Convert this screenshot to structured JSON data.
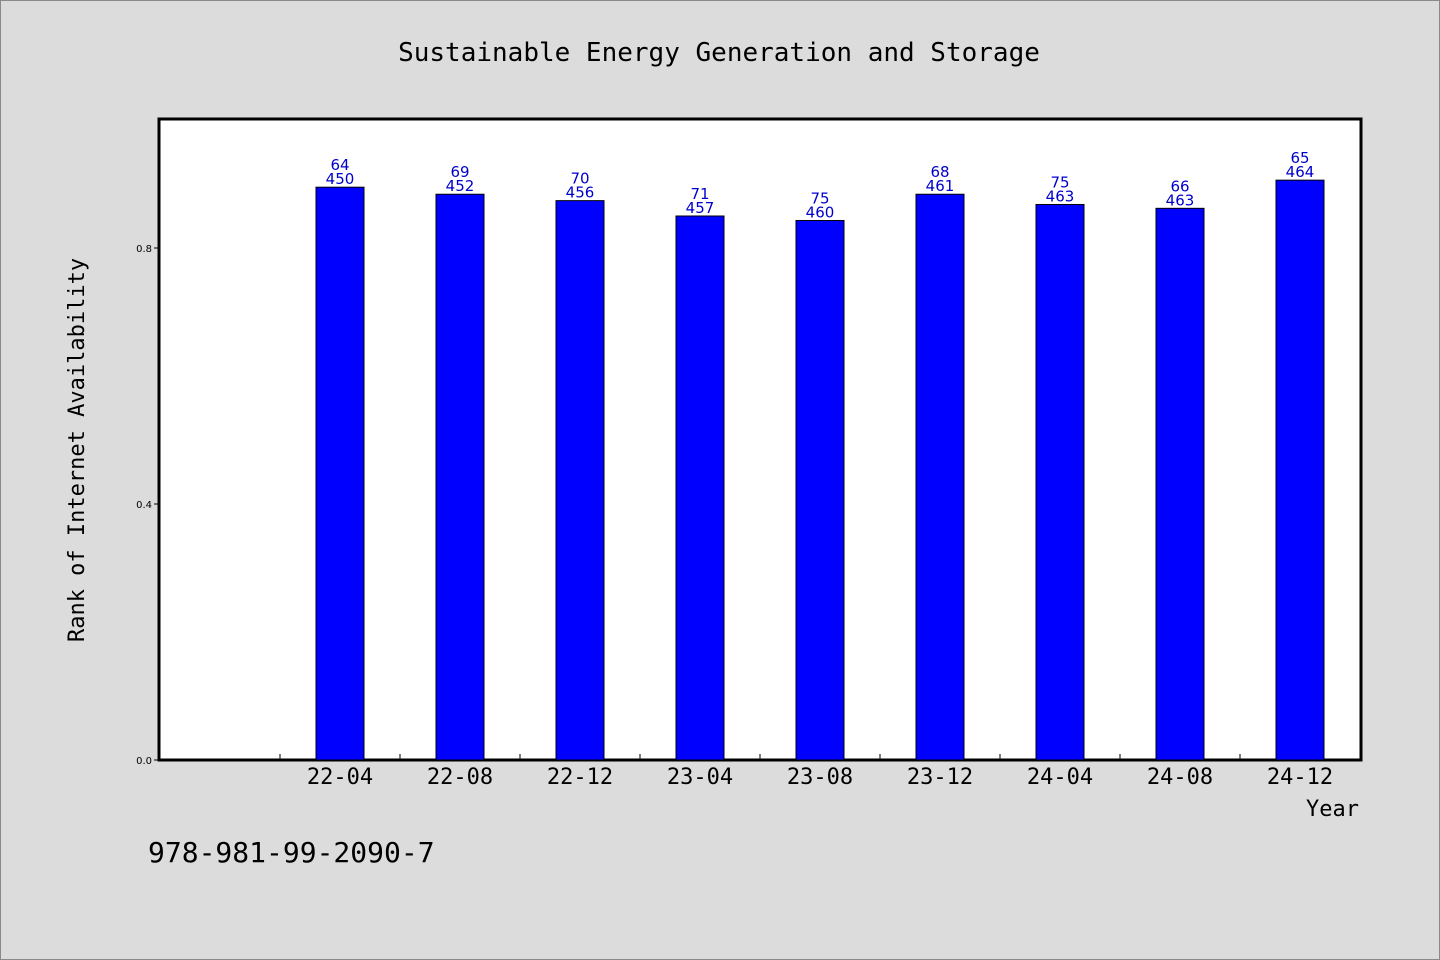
{
  "footer": {
    "isbn": "978-981-99-2090-7"
  },
  "chart_data": {
    "type": "bar",
    "title": "Sustainable Energy Generation and Storage",
    "xlabel": "Year",
    "ylabel": "Rank of Internet Availability",
    "categories": [
      "22-04",
      "22-08",
      "22-12",
      "23-04",
      "23-08",
      "23-12",
      "24-04",
      "24-08",
      "24-12"
    ],
    "values": [
      0.895,
      0.884,
      0.874,
      0.85,
      0.843,
      0.884,
      0.868,
      0.862,
      0.906
    ],
    "data_labels_top": [
      "64",
      "69",
      "70",
      "71",
      "75",
      "68",
      "75",
      "66",
      "65"
    ],
    "data_labels_bottom": [
      "450",
      "452",
      "456",
      "457",
      "460",
      "461",
      "463",
      "463",
      "464"
    ],
    "ylim": [
      0.0,
      1.0
    ],
    "yticks": [
      "0.0",
      "0.4",
      "0.8"
    ],
    "ytick_values": [
      0.0,
      0.4,
      0.8
    ],
    "grid": false,
    "bar_color": "#0000ff",
    "label_color": "#0000cc"
  }
}
